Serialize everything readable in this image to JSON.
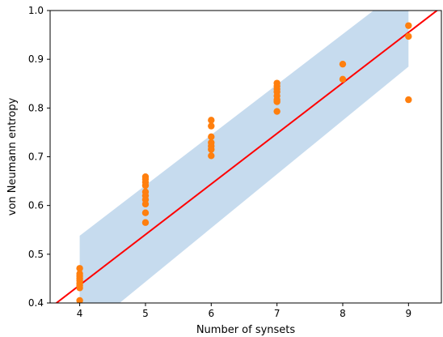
{
  "chart_data": {
    "type": "scatter",
    "xlabel": "Number of synsets",
    "ylabel": "von Neumann entropy",
    "xlim": [
      3.55,
      9.5
    ],
    "ylim": [
      0.4,
      1.0
    ],
    "xticks": [
      "4",
      "5",
      "6",
      "7",
      "8",
      "9"
    ],
    "yticks": [
      "0.4",
      "0.5",
      "0.6",
      "0.7",
      "0.8",
      "0.9",
      "1.0"
    ],
    "grid": false,
    "colors": {
      "points": "#ff7f0e",
      "fit_line": "#ff0000",
      "band": "#c6dbee",
      "axes": "#000000"
    },
    "points": [
      [
        4,
        0.471
      ],
      [
        4,
        0.46
      ],
      [
        4,
        0.455
      ],
      [
        4,
        0.45
      ],
      [
        4,
        0.446
      ],
      [
        4,
        0.44
      ],
      [
        4,
        0.436
      ],
      [
        4,
        0.431
      ],
      [
        4,
        0.405
      ],
      [
        5,
        0.659
      ],
      [
        5,
        0.654
      ],
      [
        5,
        0.648
      ],
      [
        5,
        0.641
      ],
      [
        5,
        0.628
      ],
      [
        5,
        0.62
      ],
      [
        5,
        0.612
      ],
      [
        5,
        0.603
      ],
      [
        5,
        0.585
      ],
      [
        5,
        0.565
      ],
      [
        6,
        0.775
      ],
      [
        6,
        0.763
      ],
      [
        6,
        0.741
      ],
      [
        6,
        0.729
      ],
      [
        6,
        0.722
      ],
      [
        6,
        0.715
      ],
      [
        6,
        0.702
      ],
      [
        7,
        0.851
      ],
      [
        7,
        0.845
      ],
      [
        7,
        0.839
      ],
      [
        7,
        0.833
      ],
      [
        7,
        0.825
      ],
      [
        7,
        0.817
      ],
      [
        7,
        0.813
      ],
      [
        7,
        0.793
      ],
      [
        8,
        0.89
      ],
      [
        8,
        0.859
      ],
      [
        9,
        0.969
      ],
      [
        9,
        0.947
      ],
      [
        9,
        0.817
      ]
    ],
    "fit_line": {
      "x": [
        3.55,
        9.5
      ],
      "y": [
        0.39,
        1.007
      ]
    },
    "band": {
      "x": [
        4,
        9
      ],
      "upper": [
        0.538,
        1.055
      ],
      "lower": [
        0.333,
        0.885
      ]
    }
  }
}
